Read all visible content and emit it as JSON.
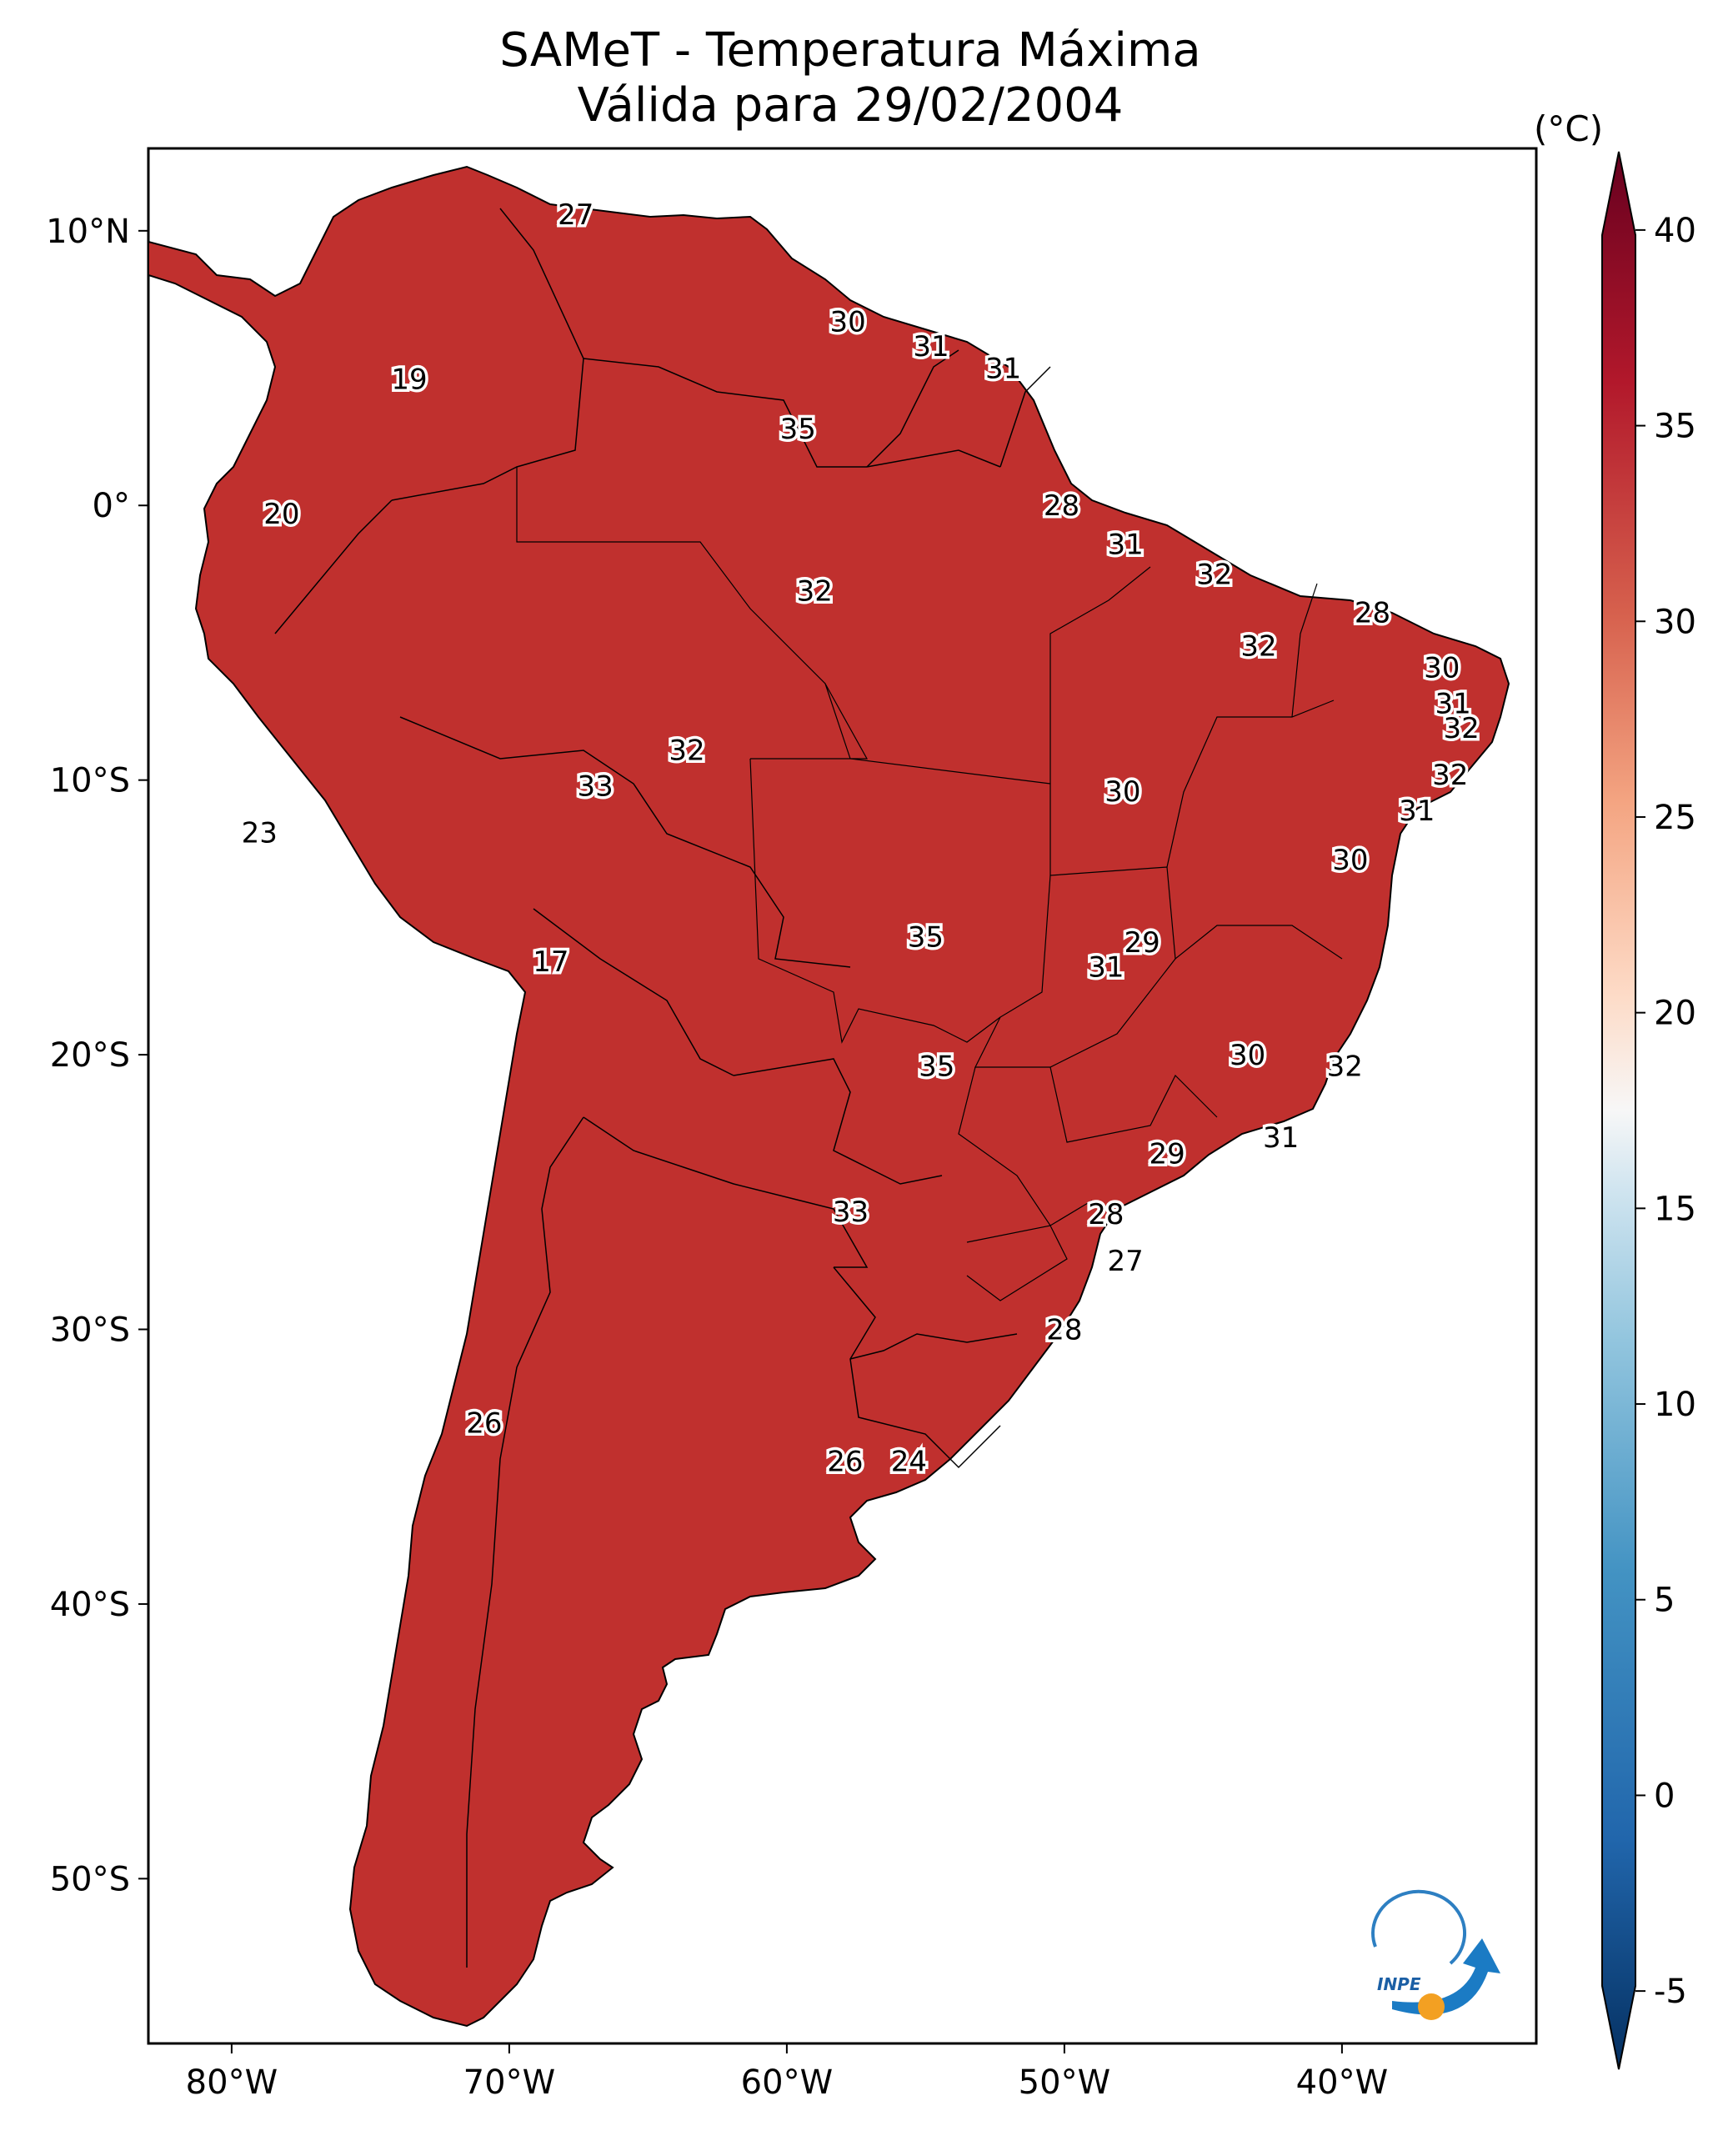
{
  "title_line1": "SAMeT - Temperatura Máxima",
  "title_line2": "Válida para 29/02/2004",
  "map": {
    "lon_range": [
      -83,
      -33
    ],
    "lat_range": [
      -56,
      13
    ],
    "lat_ticks": [
      {
        "value": 10,
        "label": "10°N"
      },
      {
        "value": 0,
        "label": "0°"
      },
      {
        "value": -10,
        "label": "10°S"
      },
      {
        "value": -20,
        "label": "20°S"
      },
      {
        "value": -30,
        "label": "30°S"
      },
      {
        "value": -40,
        "label": "40°S"
      },
      {
        "value": -50,
        "label": "50°S"
      }
    ],
    "lon_ticks": [
      {
        "value": -80,
        "label": "80°W"
      },
      {
        "value": -70,
        "label": "70°W"
      },
      {
        "value": -60,
        "label": "60°W"
      },
      {
        "value": -50,
        "label": "50°W"
      },
      {
        "value": -40,
        "label": "40°W"
      }
    ],
    "contour_labels": [
      {
        "lon": -67.6,
        "lat": 10.6,
        "text": "27"
      },
      {
        "lon": -57.8,
        "lat": 6.7,
        "text": "30"
      },
      {
        "lon": -54.8,
        "lat": 5.8,
        "text": "31"
      },
      {
        "lon": -52.2,
        "lat": 5.0,
        "text": "31"
      },
      {
        "lon": -73.6,
        "lat": 4.6,
        "text": "19"
      },
      {
        "lon": -59.6,
        "lat": 2.8,
        "text": "35"
      },
      {
        "lon": -50.1,
        "lat": 0.0,
        "text": "28"
      },
      {
        "lon": -78.2,
        "lat": -0.3,
        "text": "20"
      },
      {
        "lon": -47.8,
        "lat": -1.4,
        "text": "31"
      },
      {
        "lon": -44.6,
        "lat": -2.5,
        "text": "32"
      },
      {
        "lon": -59.0,
        "lat": -3.1,
        "text": "32"
      },
      {
        "lon": -38.9,
        "lat": -3.9,
        "text": "28"
      },
      {
        "lon": -43.0,
        "lat": -5.1,
        "text": "32"
      },
      {
        "lon": -36.4,
        "lat": -5.9,
        "text": "30"
      },
      {
        "lon": -36.0,
        "lat": -7.2,
        "text": "31"
      },
      {
        "lon": -35.7,
        "lat": -8.1,
        "text": "32"
      },
      {
        "lon": -63.6,
        "lat": -8.9,
        "text": "32"
      },
      {
        "lon": -36.1,
        "lat": -9.8,
        "text": "32"
      },
      {
        "lon": -66.9,
        "lat": -10.2,
        "text": "33"
      },
      {
        "lon": -47.9,
        "lat": -10.4,
        "text": "30"
      },
      {
        "lon": -37.3,
        "lat": -11.1,
        "text": "31"
      },
      {
        "lon": -79.0,
        "lat": -11.9,
        "text": "23"
      },
      {
        "lon": -39.7,
        "lat": -12.9,
        "text": "30"
      },
      {
        "lon": -55.0,
        "lat": -15.7,
        "text": "35"
      },
      {
        "lon": -47.2,
        "lat": -15.9,
        "text": "29"
      },
      {
        "lon": -68.5,
        "lat": -16.6,
        "text": "17"
      },
      {
        "lon": -48.5,
        "lat": -16.8,
        "text": "31"
      },
      {
        "lon": -43.4,
        "lat": -20.0,
        "text": "30"
      },
      {
        "lon": -39.9,
        "lat": -20.4,
        "text": "32"
      },
      {
        "lon": -54.6,
        "lat": -20.4,
        "text": "35"
      },
      {
        "lon": -42.2,
        "lat": -23.0,
        "text": "31"
      },
      {
        "lon": -46.3,
        "lat": -23.6,
        "text": "29"
      },
      {
        "lon": -48.5,
        "lat": -25.8,
        "text": "28"
      },
      {
        "lon": -57.7,
        "lat": -25.7,
        "text": "33"
      },
      {
        "lon": -47.8,
        "lat": -27.5,
        "text": "27"
      },
      {
        "lon": -50.0,
        "lat": -30.0,
        "text": "28"
      },
      {
        "lon": -70.9,
        "lat": -33.4,
        "text": "26"
      },
      {
        "lon": -57.9,
        "lat": -34.8,
        "text": "26"
      },
      {
        "lon": -55.6,
        "lat": -34.8,
        "text": "24"
      }
    ],
    "logo_text": "INPE"
  },
  "colorbar": {
    "unit": "(°C)",
    "vmin": -7,
    "vmax": 42,
    "ticks": [
      {
        "value": 40,
        "label": "40"
      },
      {
        "value": 35,
        "label": "35"
      },
      {
        "value": 30,
        "label": "30"
      },
      {
        "value": 25,
        "label": "25"
      },
      {
        "value": 20,
        "label": "20"
      },
      {
        "value": 15,
        "label": "15"
      },
      {
        "value": 10,
        "label": "10"
      },
      {
        "value": 5,
        "label": "5"
      },
      {
        "value": 0,
        "label": "0"
      },
      {
        "value": -5,
        "label": "-5"
      }
    ],
    "colors": {
      "dark_red": "#67001f",
      "red": "#b2182b",
      "light_red": "#d6604d",
      "salmon": "#f4a582",
      "pale": "#fddbc7",
      "white": "#f7f7f7",
      "pale_blue": "#d1e5f0",
      "light_blue": "#92c5de",
      "blue": "#4393c3",
      "mid_blue": "#2166ac",
      "dark_blue": "#053061"
    }
  }
}
